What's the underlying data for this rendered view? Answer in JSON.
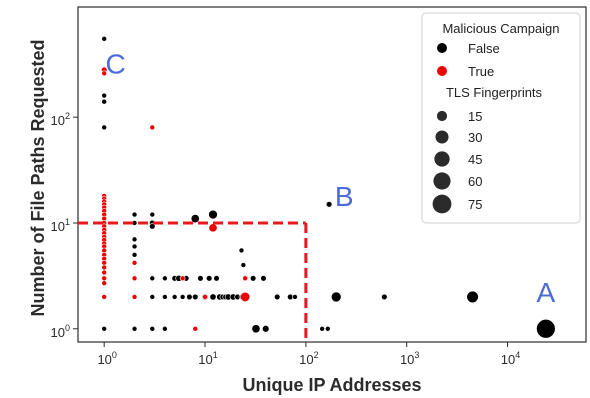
{
  "chart_data": {
    "type": "scatter",
    "xlabel": "Unique IP Addresses",
    "ylabel": "Number of File Paths Requested",
    "xscale": "log",
    "yscale": "log",
    "xlim": [
      0.55,
      60000
    ],
    "ylim": [
      0.75,
      1100
    ],
    "x_ticks": [
      {
        "base": "10",
        "exp": "0",
        "value": 1
      },
      {
        "base": "10",
        "exp": "1",
        "value": 10
      },
      {
        "base": "10",
        "exp": "2",
        "value": 100
      },
      {
        "base": "10",
        "exp": "3",
        "value": 1000
      },
      {
        "base": "10",
        "exp": "4",
        "value": 10000
      }
    ],
    "y_ticks": [
      {
        "base": "10",
        "exp": "0",
        "value": 1
      },
      {
        "base": "10",
        "exp": "1",
        "value": 10
      },
      {
        "base": "10",
        "exp": "2",
        "value": 100
      }
    ],
    "colors": {
      "False": "#000000",
      "True": "#ee0000",
      "threshold": "#e8191e",
      "annotation": "#4d6bd6",
      "axes": "#2b2b2b"
    },
    "legend": {
      "hue_title": "Malicious Campaign",
      "hue_entries": [
        "False",
        "True"
      ],
      "size_title": "TLS Fingerprints",
      "size_entries": [
        15,
        30,
        45,
        60,
        75
      ],
      "placement": "top-right"
    },
    "threshold": {
      "x": 100,
      "y": 10
    },
    "annotations": [
      {
        "text": "A",
        "x": 24000,
        "y": 1.8
      },
      {
        "text": "B",
        "x": 240,
        "y": 14.5
      },
      {
        "text": "C",
        "x": 1.3,
        "y": 260
      }
    ],
    "series": [
      {
        "name": "False",
        "points": [
          [
            1,
            550,
            1
          ],
          [
            1,
            280,
            1
          ],
          [
            1,
            160,
            1
          ],
          [
            1,
            140,
            1
          ],
          [
            1,
            80,
            1
          ],
          [
            1,
            1,
            1
          ],
          [
            1,
            14,
            1
          ],
          [
            1,
            10,
            1
          ],
          [
            2,
            12,
            1
          ],
          [
            2,
            10,
            1
          ],
          [
            2,
            7,
            1
          ],
          [
            2,
            6,
            1
          ],
          [
            2,
            5,
            1
          ],
          [
            2,
            4.2,
            1
          ],
          [
            2,
            3,
            1
          ],
          [
            2,
            2,
            1
          ],
          [
            2,
            1,
            1
          ],
          [
            3,
            12,
            1
          ],
          [
            3,
            10,
            2
          ],
          [
            3,
            9.3,
            2
          ],
          [
            3,
            3,
            1
          ],
          [
            3,
            2,
            1
          ],
          [
            3,
            1,
            1
          ],
          [
            4,
            3,
            1
          ],
          [
            4,
            2,
            1
          ],
          [
            4,
            1,
            1
          ],
          [
            5,
            3,
            2
          ],
          [
            5,
            2,
            1
          ],
          [
            5.5,
            3,
            3
          ],
          [
            6,
            2,
            1
          ],
          [
            6.5,
            3,
            2
          ],
          [
            7,
            2,
            2
          ],
          [
            8,
            11,
            8
          ],
          [
            8,
            2,
            2
          ],
          [
            9,
            3,
            2
          ],
          [
            10,
            2,
            3
          ],
          [
            11,
            3,
            2
          ],
          [
            12,
            12,
            10
          ],
          [
            12,
            2,
            3
          ],
          [
            13,
            3,
            2
          ],
          [
            14,
            2,
            3
          ],
          [
            15,
            2,
            2
          ],
          [
            16,
            2,
            2
          ],
          [
            17,
            2,
            3
          ],
          [
            19,
            2,
            3
          ],
          [
            21,
            2,
            2
          ],
          [
            23,
            5.5,
            1
          ],
          [
            23,
            2,
            1
          ],
          [
            24,
            4,
            1
          ],
          [
            26,
            2,
            2
          ],
          [
            30,
            3,
            2
          ],
          [
            32,
            1,
            8
          ],
          [
            38,
            3,
            2
          ],
          [
            40,
            1,
            4
          ],
          [
            52,
            2,
            2
          ],
          [
            70,
            2,
            2
          ],
          [
            78,
            2,
            1
          ],
          [
            145,
            1,
            1
          ],
          [
            165,
            1,
            1
          ],
          [
            170,
            15,
            2
          ],
          [
            200,
            2,
            14
          ],
          [
            600,
            2,
            2
          ],
          [
            4500,
            2,
            22
          ],
          [
            24000,
            1,
            75
          ]
        ]
      },
      {
        "name": "True",
        "points": [
          [
            1,
            280,
            2
          ],
          [
            1,
            260,
            1
          ],
          [
            1,
            18,
            1
          ],
          [
            1,
            17,
            1
          ],
          [
            1,
            16,
            1
          ],
          [
            1,
            15,
            1
          ],
          [
            1,
            14,
            1
          ],
          [
            1,
            13,
            1
          ],
          [
            1,
            12,
            1
          ],
          [
            1,
            11,
            1
          ],
          [
            1,
            10,
            1
          ],
          [
            1,
            9.3,
            1
          ],
          [
            1,
            8.6,
            1
          ],
          [
            1,
            8,
            1
          ],
          [
            1,
            7.4,
            1
          ],
          [
            1,
            6.9,
            1
          ],
          [
            1,
            6.4,
            1
          ],
          [
            1,
            6,
            1
          ],
          [
            1,
            5.5,
            1
          ],
          [
            1,
            5,
            1
          ],
          [
            1,
            4.6,
            1
          ],
          [
            1,
            4.2,
            1
          ],
          [
            1,
            3.8,
            1
          ],
          [
            1,
            3.4,
            1
          ],
          [
            1,
            3,
            1
          ],
          [
            1,
            2.7,
            1
          ],
          [
            1,
            2,
            1
          ],
          [
            2,
            4.2,
            1
          ],
          [
            2,
            3,
            1
          ],
          [
            2,
            2,
            1
          ],
          [
            3,
            80,
            1
          ],
          [
            6,
            3,
            1
          ],
          [
            8,
            1,
            1
          ],
          [
            10,
            2,
            1
          ],
          [
            12,
            9,
            8
          ],
          [
            25,
            3,
            1
          ],
          [
            25,
            2,
            12
          ]
        ]
      }
    ]
  }
}
